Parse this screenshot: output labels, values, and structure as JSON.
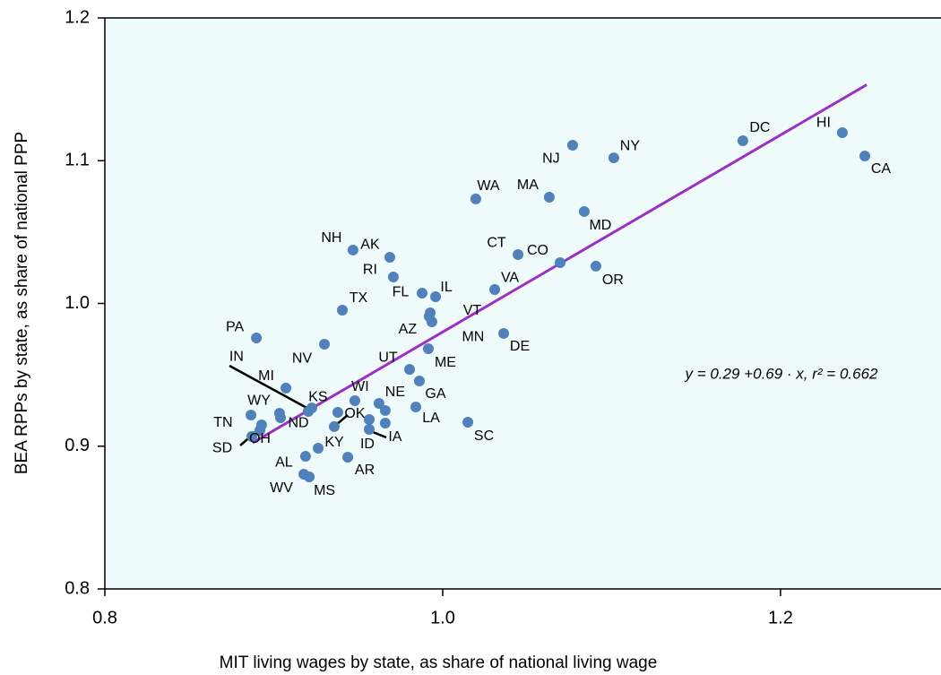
{
  "chart_data": {
    "type": "scatter",
    "xlabel": "MIT living wages by state, as share of national living wage",
    "ylabel": "BEA RPPs by state, as share of national PPP",
    "xlim": [
      0.8,
      1.295
    ],
    "ylim": [
      0.8,
      1.2
    ],
    "xticks": [
      0.8,
      {
        "value": 1.0,
        "label": "1.0"
      },
      1.2
    ],
    "yticks": [
      0.8,
      0.9,
      {
        "value": 1.0,
        "label": "1.0"
      },
      1.1,
      1.2
    ],
    "color": "#4f81bd",
    "background": "#effbfb",
    "labels": [
      "DC",
      "HI",
      "CA",
      "NJ",
      "NY",
      "WA",
      "MA",
      "MD",
      "CT",
      "CO",
      "OR",
      "VA",
      "IL",
      "FL",
      "RI",
      "AK",
      "NH",
      "TX",
      "VT",
      "AZ",
      "MN",
      "DE",
      "PA",
      "NV",
      "ME",
      "UT",
      "GA",
      "MI",
      "KS",
      "IN",
      "WI",
      "NE",
      "LA",
      "WY",
      "ND",
      "OK",
      "TN",
      "SD",
      "OH",
      "ID",
      "IA",
      "KY",
      "AL",
      "AR",
      "WV",
      "MS",
      "SC",
      null,
      null,
      null,
      null
    ],
    "x": [
      1.1777,
      1.2366,
      1.2499,
      1.0769,
      1.1013,
      1.0196,
      1.0631,
      1.0838,
      1.0446,
      1.0695,
      1.0907,
      1.0308,
      0.9958,
      0.9878,
      0.9708,
      0.9687,
      0.9469,
      0.9406,
      0.9926,
      0.992,
      0.9936,
      1.0361,
      0.8897,
      0.93,
      0.9915,
      0.9804,
      0.9862,
      0.9072,
      0.9225,
      0.9204,
      0.948,
      0.9623,
      0.9841,
      0.8865,
      0.904,
      0.9358,
      0.8928,
      0.8918,
      0.887,
      0.9565,
      0.966,
      0.9263,
      0.9188,
      0.9438,
      0.9178,
      0.921,
      1.0149,
      0.9034,
      0.9379,
      0.9565,
      0.966
    ],
    "y": [
      1.114,
      1.1196,
      1.1033,
      1.1108,
      1.102,
      1.0732,
      1.0744,
      1.0644,
      1.0342,
      1.0286,
      1.0261,
      1.0097,
      1.0047,
      1.0072,
      1.0185,
      1.0323,
      1.0374,
      0.9953,
      0.9934,
      0.9909,
      0.9871,
      0.979,
      0.9758,
      0.9714,
      0.9683,
      0.9538,
      0.9457,
      0.9407,
      0.9268,
      0.9243,
      0.9319,
      0.93,
      0.9275,
      0.9218,
      0.9199,
      0.9137,
      0.9149,
      0.9111,
      0.9068,
      0.9118,
      0.9162,
      0.8986,
      0.8929,
      0.8923,
      0.8804,
      0.8785,
      0.9168,
      0.9231,
      0.9237,
      0.9187,
      0.925
    ],
    "fit": {
      "intercept": 0.29,
      "slope": 0.69,
      "x_range": [
        0.8875,
        1.251
      ],
      "color": "#9b30c8"
    },
    "annotation": "y = 0.29 +0.69 · x,  r² = 0.662"
  }
}
